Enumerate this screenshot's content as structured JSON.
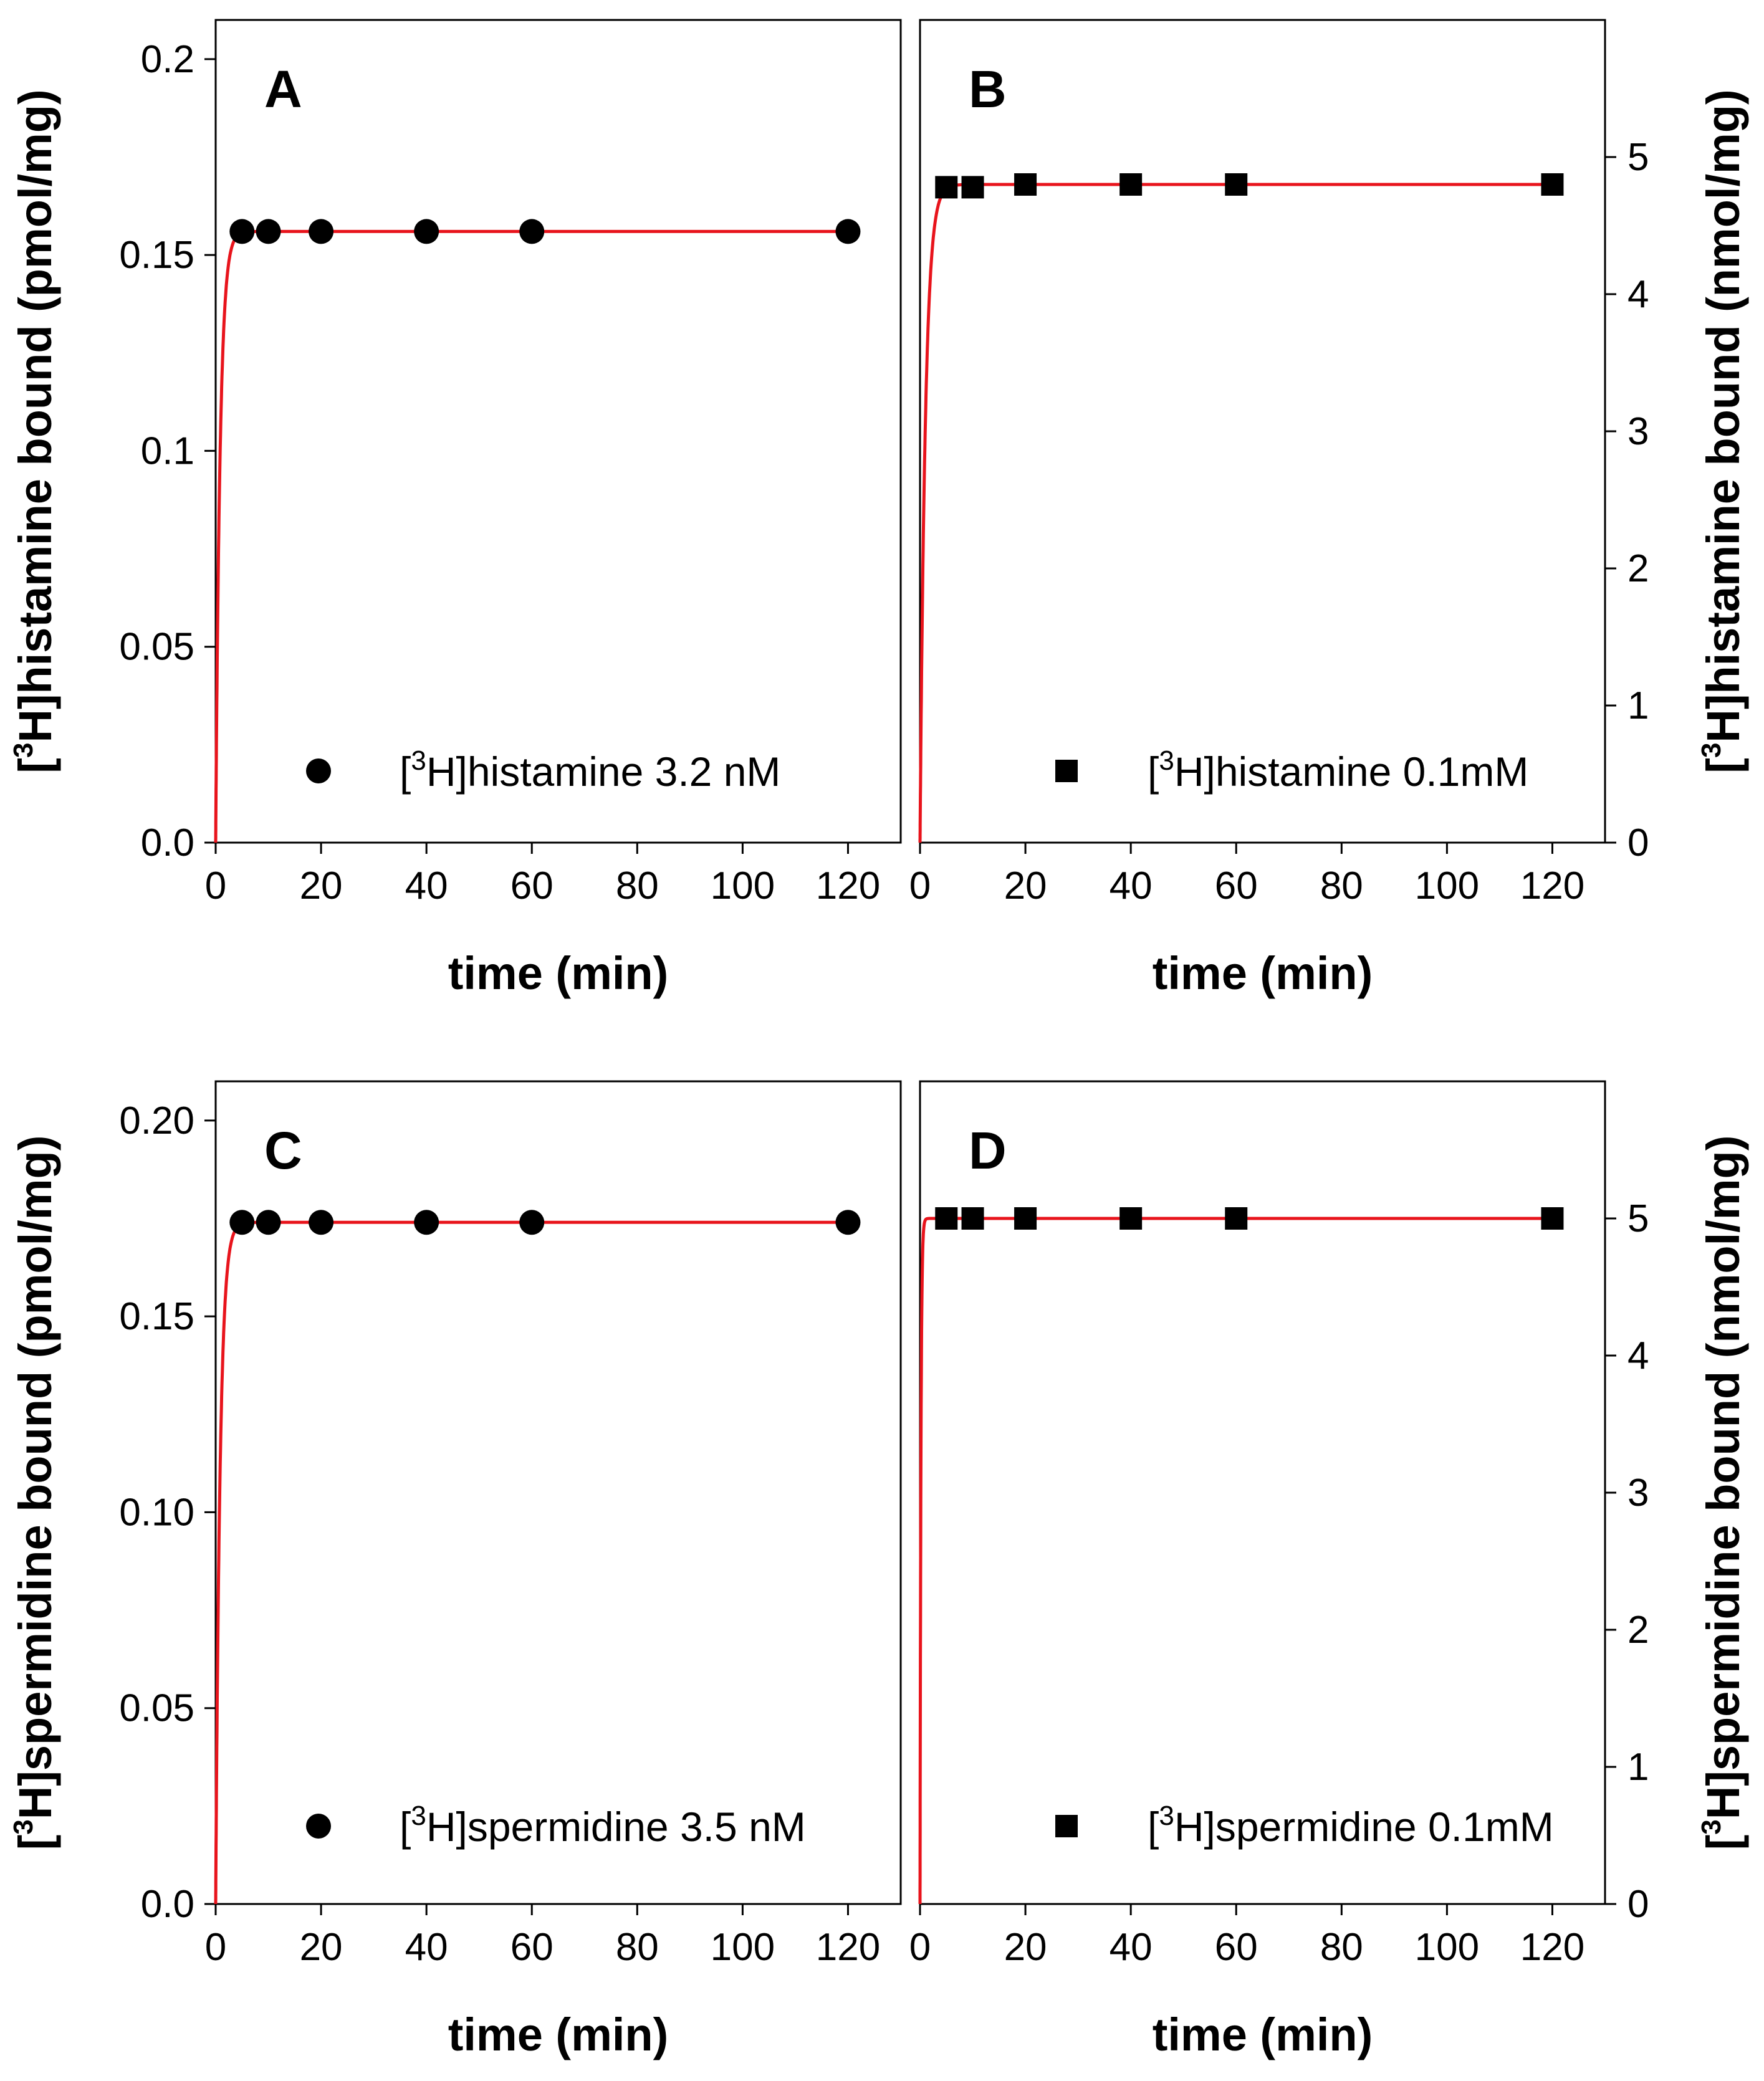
{
  "figure": {
    "colors": {
      "fit": "#e8141c",
      "marker": "#000000",
      "axis": "#000000"
    }
  },
  "chart_data": [
    {
      "panel": "A",
      "type": "scatter",
      "panel_label": "A",
      "x": [
        5,
        10,
        20,
        40,
        60,
        120
      ],
      "y": [
        0.156,
        0.156,
        0.156,
        0.156,
        0.156,
        0.156
      ],
      "marker": "circle",
      "fit": {
        "model": "one-phase association",
        "plateau": 0.156,
        "k": 1.2
      },
      "xlim": [
        0,
        130
      ],
      "ylim": [
        0,
        0.21
      ],
      "xticks": [
        0,
        20,
        40,
        60,
        80,
        100,
        120
      ],
      "xtick_labels": [
        "0",
        "20",
        "40",
        "60",
        "80",
        "100",
        "120"
      ],
      "yticks": [
        0,
        0.05,
        0.1,
        0.15,
        0.2
      ],
      "ytick_labels": [
        "0.0",
        "0.05",
        "0.1",
        "0.15",
        "0.2"
      ],
      "xlabel": "time (min)",
      "ylabel": {
        "pre": "[",
        "sup": "3",
        "post": "H]histamine bound (pmol/mg)"
      },
      "legend": {
        "pre": "[",
        "sup": "3",
        "post": "H]histamine 3.2 nM"
      },
      "y_axis_side": "left"
    },
    {
      "panel": "B",
      "type": "scatter",
      "panel_label": "B",
      "x": [
        5,
        10,
        20,
        40,
        60,
        120
      ],
      "y": [
        4.78,
        4.78,
        4.8,
        4.8,
        4.8,
        4.8
      ],
      "marker": "square",
      "fit": {
        "model": "one-phase association",
        "plateau": 4.8,
        "k": 1.0
      },
      "xlim": [
        0,
        130
      ],
      "ylim": [
        0,
        6
      ],
      "xticks": [
        0,
        20,
        40,
        60,
        80,
        100,
        120
      ],
      "xtick_labels": [
        "0",
        "20",
        "40",
        "60",
        "80",
        "100",
        "120"
      ],
      "yticks": [
        0,
        1,
        2,
        3,
        4,
        5
      ],
      "ytick_labels": [
        "0",
        "1",
        "2",
        "3",
        "4",
        "5"
      ],
      "xlabel": "time (min)",
      "ylabel": {
        "pre": "[",
        "sup": "3",
        "post": "H]histamine bound (nmol/mg)"
      },
      "legend": {
        "pre": "[",
        "sup": "3",
        "post": "H]histamine 0.1mM"
      },
      "y_axis_side": "right"
    },
    {
      "panel": "C",
      "type": "scatter",
      "panel_label": "C",
      "x": [
        5,
        10,
        20,
        40,
        60,
        120
      ],
      "y": [
        0.174,
        0.174,
        0.174,
        0.174,
        0.174,
        0.174
      ],
      "marker": "circle",
      "fit": {
        "model": "one-phase association",
        "plateau": 0.174,
        "k": 1.2
      },
      "xlim": [
        0,
        130
      ],
      "ylim": [
        0,
        0.21
      ],
      "xticks": [
        0,
        20,
        40,
        60,
        80,
        100,
        120
      ],
      "xtick_labels": [
        "0",
        "20",
        "40",
        "60",
        "80",
        "100",
        "120"
      ],
      "yticks": [
        0,
        0.05,
        0.1,
        0.15,
        0.2
      ],
      "ytick_labels": [
        "0.0",
        "0.05",
        "0.10",
        "0.15",
        "0.20"
      ],
      "xlabel": "time (min)",
      "ylabel": {
        "pre": "[",
        "sup": "3",
        "post": "H]spermidine bound (pmol/mg)"
      },
      "legend": {
        "pre": "[",
        "sup": "3",
        "post": "H]spermidine 3.5 nM"
      },
      "y_axis_side": "left"
    },
    {
      "panel": "D",
      "type": "scatter",
      "panel_label": "D",
      "x": [
        5,
        10,
        20,
        40,
        60,
        120
      ],
      "y": [
        5.0,
        5.0,
        5.0,
        5.0,
        5.0,
        5.0
      ],
      "marker": "square",
      "fit": {
        "model": "one-phase association",
        "plateau": 5.0,
        "k": 6.0
      },
      "xlim": [
        0,
        130
      ],
      "ylim": [
        0,
        6
      ],
      "xticks": [
        0,
        20,
        40,
        60,
        80,
        100,
        120
      ],
      "xtick_labels": [
        "0",
        "20",
        "40",
        "60",
        "80",
        "100",
        "120"
      ],
      "yticks": [
        0,
        1,
        2,
        3,
        4,
        5
      ],
      "ytick_labels": [
        "0",
        "1",
        "2",
        "3",
        "4",
        "5"
      ],
      "xlabel": "time (min)",
      "ylabel": {
        "pre": "[",
        "sup": "3",
        "post": "H]spermidine bound (nmol/mg)"
      },
      "legend": {
        "pre": "[",
        "sup": "3",
        "post": "H]spermidine 0.1mM"
      },
      "y_axis_side": "right"
    }
  ]
}
